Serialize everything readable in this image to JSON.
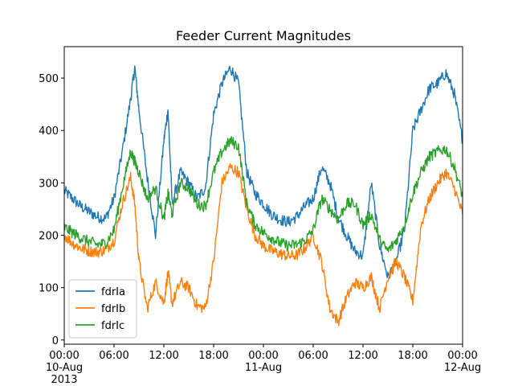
{
  "chart_data": {
    "type": "line",
    "title": "Feeder Current Magnitudes",
    "xlabel": "",
    "ylabel": "",
    "x_range": [
      "2013-08-10 00:00",
      "2013-08-12 00:00"
    ],
    "ylim": [
      -8,
      560
    ],
    "grid": false,
    "legend_position": "lower-left",
    "x_ticks": [
      {
        "at": "2013-08-10 00:00",
        "lines": [
          "00:00",
          "10-Aug",
          "2013"
        ]
      },
      {
        "at": "2013-08-10 06:00",
        "lines": [
          "06:00"
        ]
      },
      {
        "at": "2013-08-10 12:00",
        "lines": [
          "12:00"
        ]
      },
      {
        "at": "2013-08-10 18:00",
        "lines": [
          "18:00"
        ]
      },
      {
        "at": "2013-08-11 00:00",
        "lines": [
          "00:00",
          "11-Aug"
        ]
      },
      {
        "at": "2013-08-11 06:00",
        "lines": [
          "06:00"
        ]
      },
      {
        "at": "2013-08-11 12:00",
        "lines": [
          "12:00"
        ]
      },
      {
        "at": "2013-08-11 18:00",
        "lines": [
          "18:00"
        ]
      },
      {
        "at": "2013-08-12 00:00",
        "lines": [
          "00:00",
          "12-Aug"
        ]
      }
    ],
    "y_ticks": [
      0,
      100,
      200,
      300,
      400,
      500
    ],
    "x": [
      "2013-08-10 00:00",
      "2013-08-10 01:00",
      "2013-08-10 02:00",
      "2013-08-10 03:00",
      "2013-08-10 04:00",
      "2013-08-10 05:00",
      "2013-08-10 06:00",
      "2013-08-10 07:00",
      "2013-08-10 08:00",
      "2013-08-10 08:30",
      "2013-08-10 09:00",
      "2013-08-10 10:00",
      "2013-08-10 11:00",
      "2013-08-10 12:00",
      "2013-08-10 12:30",
      "2013-08-10 13:00",
      "2013-08-10 14:00",
      "2013-08-10 15:00",
      "2013-08-10 16:00",
      "2013-08-10 17:00",
      "2013-08-10 18:00",
      "2013-08-10 19:00",
      "2013-08-10 20:00",
      "2013-08-10 21:00",
      "2013-08-10 22:00",
      "2013-08-10 23:00",
      "2013-08-11 00:00",
      "2013-08-11 01:00",
      "2013-08-11 02:00",
      "2013-08-11 03:00",
      "2013-08-11 04:00",
      "2013-08-11 05:00",
      "2013-08-11 06:00",
      "2013-08-11 07:00",
      "2013-08-11 08:00",
      "2013-08-11 09:00",
      "2013-08-11 10:00",
      "2013-08-11 11:00",
      "2013-08-11 12:00",
      "2013-08-11 13:00",
      "2013-08-11 14:00",
      "2013-08-11 15:00",
      "2013-08-11 16:00",
      "2013-08-11 17:00",
      "2013-08-11 18:00",
      "2013-08-11 19:00",
      "2013-08-11 20:00",
      "2013-08-11 21:00",
      "2013-08-11 22:00",
      "2013-08-11 23:00",
      "2013-08-12 00:00"
    ],
    "series": [
      {
        "name": "fdrIa",
        "color": "#1f77b4",
        "values": [
          285,
          270,
          255,
          245,
          235,
          232,
          270,
          360,
          460,
          520,
          440,
          310,
          200,
          380,
          440,
          260,
          320,
          300,
          270,
          290,
          430,
          490,
          520,
          490,
          320,
          280,
          260,
          240,
          230,
          225,
          235,
          255,
          270,
          330,
          300,
          235,
          200,
          170,
          160,
          300,
          180,
          120,
          150,
          210,
          400,
          440,
          480,
          490,
          510,
          470,
          380
        ]
      },
      {
        "name": "fdrIb",
        "color": "#ff7f0e",
        "values": [
          200,
          185,
          175,
          170,
          168,
          172,
          190,
          260,
          310,
          260,
          150,
          60,
          110,
          70,
          130,
          70,
          110,
          100,
          65,
          60,
          150,
          300,
          330,
          320,
          250,
          200,
          180,
          170,
          165,
          160,
          162,
          175,
          200,
          150,
          60,
          35,
          80,
          110,
          100,
          120,
          60,
          120,
          150,
          120,
          75,
          220,
          270,
          300,
          320,
          290,
          240
        ]
      },
      {
        "name": "fdrIc",
        "color": "#2ca02c",
        "values": [
          215,
          205,
          195,
          188,
          182,
          185,
          210,
          290,
          360,
          340,
          320,
          270,
          290,
          230,
          280,
          240,
          300,
          290,
          260,
          255,
          320,
          360,
          380,
          370,
          260,
          220,
          205,
          195,
          185,
          180,
          182,
          190,
          210,
          270,
          250,
          230,
          260,
          260,
          220,
          240,
          190,
          170,
          190,
          220,
          280,
          320,
          350,
          360,
          365,
          330,
          275
        ]
      }
    ]
  }
}
